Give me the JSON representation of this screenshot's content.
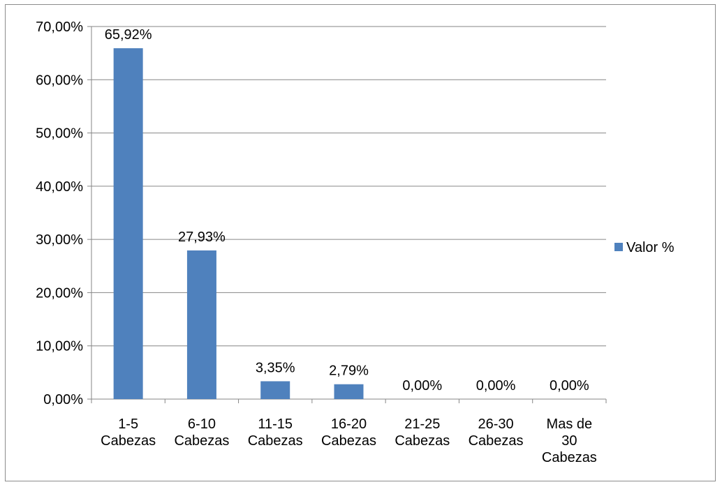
{
  "chart_data": {
    "type": "bar",
    "categories": [
      [
        "1-5",
        "Cabezas"
      ],
      [
        "6-10",
        "Cabezas"
      ],
      [
        "11-15",
        "Cabezas"
      ],
      [
        "16-20",
        "Cabezas"
      ],
      [
        "21-25",
        "Cabezas"
      ],
      [
        "26-30",
        "Cabezas"
      ],
      [
        "Mas de",
        "30",
        "Cabezas"
      ]
    ],
    "series": [
      {
        "name": "Valor %",
        "values": [
          65.92,
          27.93,
          3.35,
          2.79,
          0.0,
          0.0,
          0.0
        ],
        "data_labels": [
          "65,92%",
          "27,93%",
          "3,35%",
          "2,79%",
          "0,00%",
          "0,00%",
          "0,00%"
        ],
        "color": "#4f81bd"
      }
    ],
    "ylim": [
      0,
      70
    ],
    "yticks": [
      "0,00%",
      "10,00%",
      "20,00%",
      "30,00%",
      "40,00%",
      "50,00%",
      "60,00%",
      "70,00%"
    ],
    "grid": true,
    "legend_position": "right",
    "title": "",
    "xlabel": "",
    "ylabel": ""
  }
}
